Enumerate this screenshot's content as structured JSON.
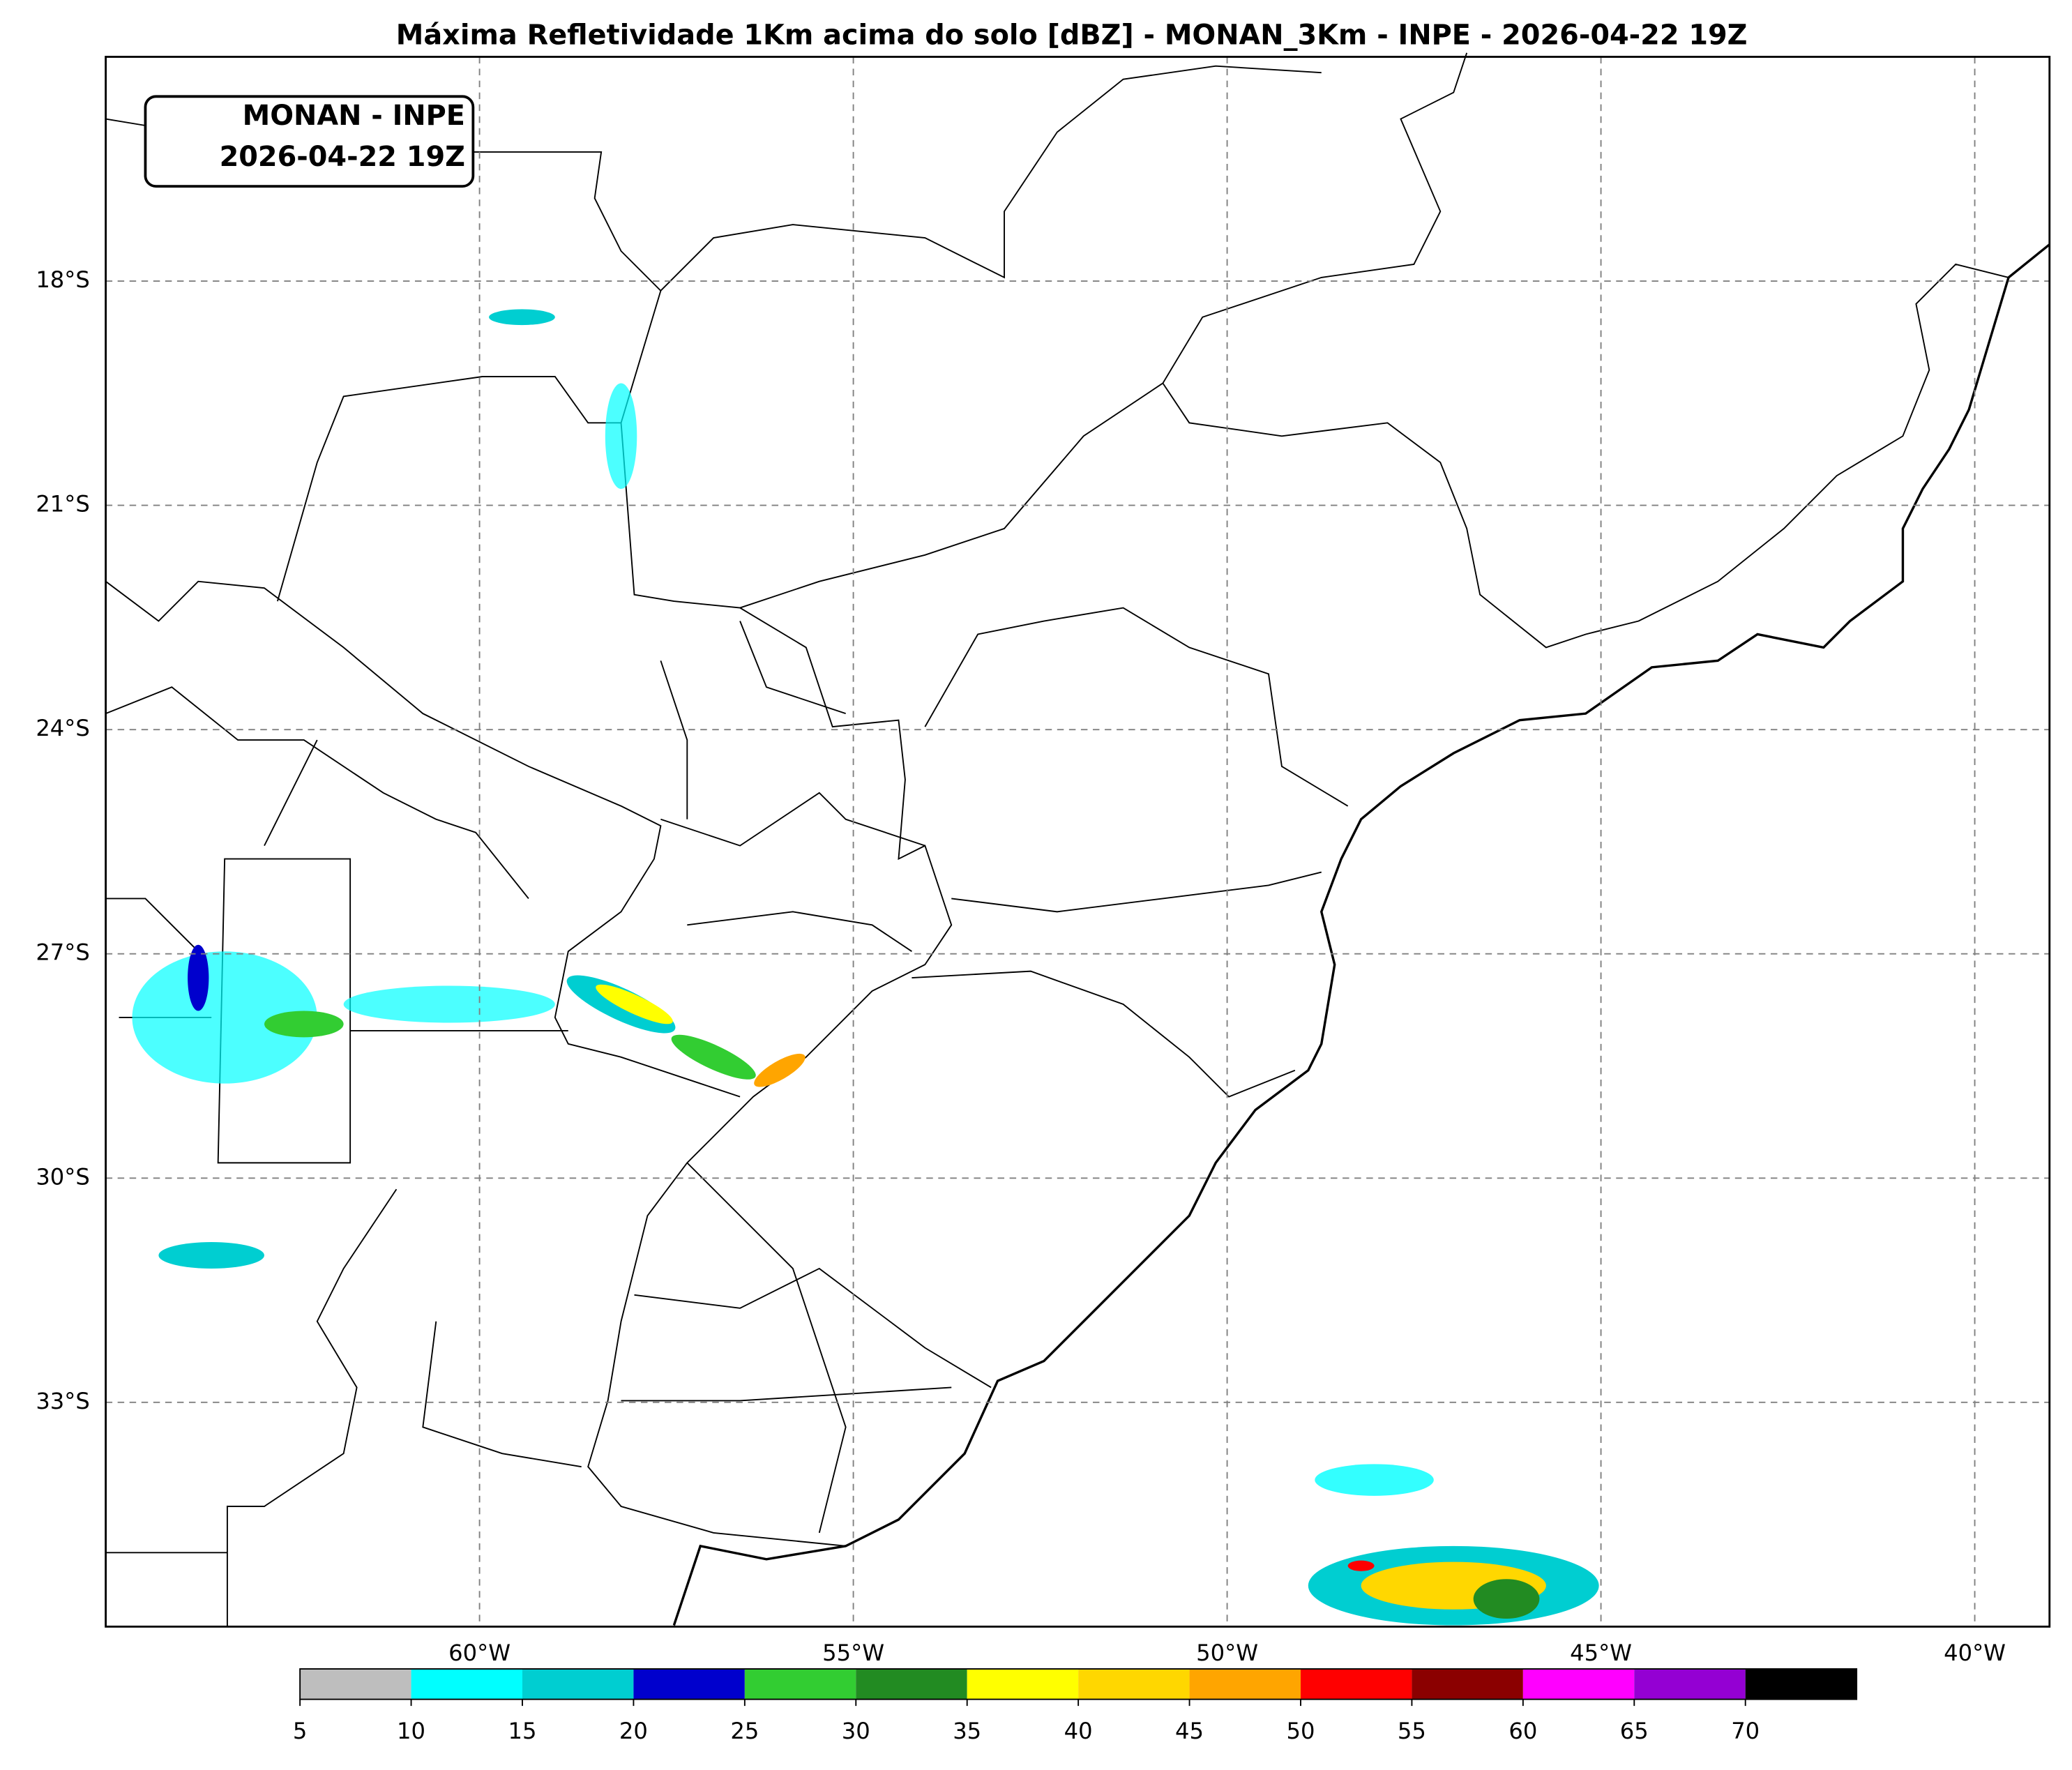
{
  "title": "Máxima Refletividade 1Km acima do solo [dBZ] - MONAN_3Km - INPE - 2026-04-22 19Z",
  "label_box": {
    "lines": [
      "MONAN - INPE",
      "2026-04-22 19Z"
    ]
  },
  "map": {
    "lon_range": [
      -65,
      -39
    ],
    "lat_range": [
      -36,
      -15
    ],
    "lat_ticks": [
      {
        "value": -18,
        "label": "18°S"
      },
      {
        "value": -21,
        "label": "21°S"
      },
      {
        "value": -24,
        "label": "24°S"
      },
      {
        "value": -27,
        "label": "27°S"
      },
      {
        "value": -30,
        "label": "30°S"
      },
      {
        "value": -33,
        "label": "33°S"
      }
    ],
    "lon_ticks": [
      {
        "value": -60,
        "label": "60°W"
      },
      {
        "value": -55,
        "label": "55°W"
      },
      {
        "value": -50,
        "label": "50°W"
      },
      {
        "value": -45,
        "label": "45°W"
      },
      {
        "value": -40,
        "label": "40°W"
      }
    ]
  },
  "colorbar": {
    "ticks": [
      5,
      10,
      15,
      20,
      25,
      30,
      35,
      40,
      45,
      50,
      55,
      60,
      65,
      70
    ],
    "colors": [
      "#bebebe",
      "#00ffff",
      "#00ced1",
      "#0000cd",
      "#32cd32",
      "#228b22",
      "#ffff00",
      "#ffd700",
      "#ffa500",
      "#ff0000",
      "#8b0000",
      "#ff00ff",
      "#9400d3",
      "#000000"
    ]
  }
}
